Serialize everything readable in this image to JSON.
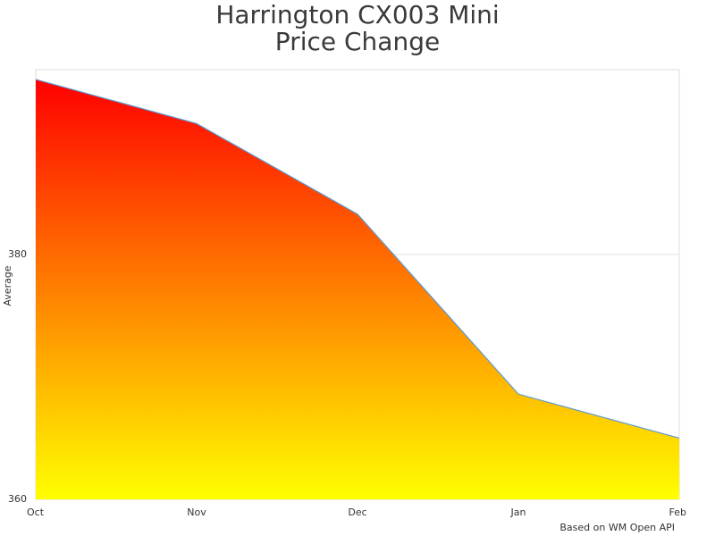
{
  "chart_data": {
    "type": "area",
    "title": [
      "Harrington CX003 Mini",
      "Price Change"
    ],
    "ylabel": "Average",
    "footer": "Based on WM Open API",
    "categories": [
      "Oct",
      "Nov",
      "Dec",
      "Jan",
      "Feb"
    ],
    "values": [
      394.3,
      390.7,
      383.3,
      368.6,
      365.0
    ],
    "ylim": [
      360,
      395.1
    ],
    "yticks": [
      360,
      380
    ],
    "grid": true,
    "line_color": "#5b9bd5",
    "gradient": [
      "#ff0000",
      "#ffff00"
    ]
  }
}
